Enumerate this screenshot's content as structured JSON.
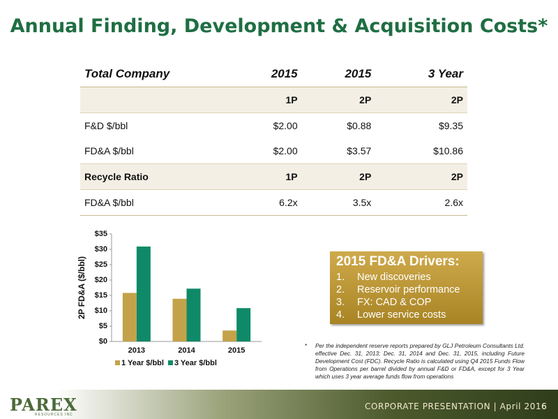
{
  "header": {
    "title": "Annual Finding, Development & Acquisition Costs*"
  },
  "table": {
    "header": [
      "Total Company",
      "2015",
      "2015",
      "3 Year"
    ],
    "rows": [
      {
        "cells": [
          "1P",
          "2P",
          "2P"
        ],
        "shaded": true
      },
      {
        "label": "F&D $/bbl",
        "cells": [
          "$2.00",
          "$0.88",
          "$9.35"
        ]
      },
      {
        "label": "FD&A $/bbl",
        "cells": [
          "$2.00",
          "$3.57",
          "$10.86"
        ]
      },
      {
        "label": "Recycle Ratio",
        "cells": [
          "1P",
          "2P",
          "2P"
        ],
        "shaded": true
      },
      {
        "label": "FD&A $/bbl",
        "cells": [
          "6.2x",
          "3.5x",
          "2.6x"
        ]
      }
    ]
  },
  "chart_data": {
    "type": "bar",
    "y_label": "2P FD&A ($/bbl)",
    "categories": [
      "2013",
      "2014",
      "2015"
    ],
    "series": [
      {
        "name": "1 Year $/bbl",
        "color": "#c4a24a",
        "values": [
          15.8,
          13.9,
          3.57
        ]
      },
      {
        "name": "3 Year $/bbl",
        "color": "#0f8a68",
        "values": [
          30.9,
          17.2,
          10.86
        ]
      }
    ],
    "ylim": [
      0,
      35
    ],
    "yticks": [
      {
        "value": 0,
        "label": "$0"
      },
      {
        "value": 5,
        "label": "$5"
      },
      {
        "value": 10,
        "label": "$10"
      },
      {
        "value": 15,
        "label": "$15"
      },
      {
        "value": 20,
        "label": "$20"
      },
      {
        "value": 25,
        "label": "$25"
      },
      {
        "value": 30,
        "label": "$30"
      },
      {
        "value": 35,
        "label": "$35"
      }
    ],
    "grid": false,
    "legend": "bottom"
  },
  "drivers": {
    "title": "2015 FD&A Drivers:",
    "items": [
      {
        "number": "1.",
        "text": "New discoveries"
      },
      {
        "number": "2.",
        "text": "Reservoir performance"
      },
      {
        "number": "3.",
        "text": "FX: CAD & COP"
      },
      {
        "number": "4.",
        "text": "Lower service costs"
      }
    ]
  },
  "footnote": {
    "marker": "*",
    "text": "Per the independent reserve reports prepared by GLJ Petroleum Consultants Ltd. effective Dec. 31, 2013; Dec. 31, 2014 and Dec. 31, 2015, including Future Development Cost (FDC). Recycle Ratio is calculated using Q4 2015 Funds Flow from Operations per barrel divided by annual F&D or FD&A, except for 3 Year which uses 3 year average funds flow from operations"
  },
  "footer": {
    "logo": "PAREX",
    "logo_sub": "RESOURCES INC",
    "text": "CORPORATE PRESENTATION | April 2016",
    "page": "6"
  }
}
